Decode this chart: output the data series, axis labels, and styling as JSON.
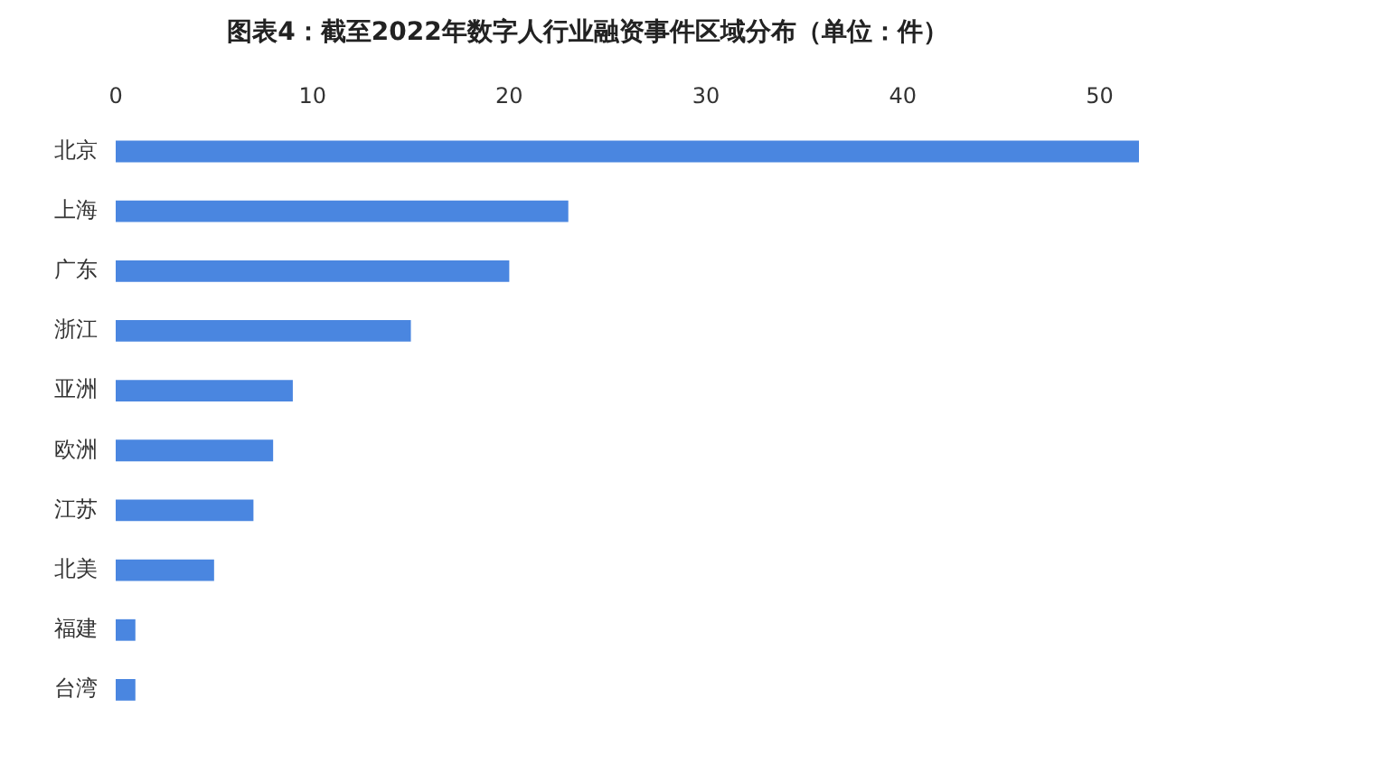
{
  "chart_data": {
    "type": "bar",
    "orientation": "horizontal",
    "title": "图表4：截至2022年数字人行业融资事件区域分布（单位：件）",
    "categories": [
      "北京",
      "上海",
      "广东",
      "浙江",
      "亚洲",
      "欧洲",
      "江苏",
      "北美",
      "福建",
      "台湾"
    ],
    "values": [
      52,
      23,
      20,
      15,
      9,
      8,
      7,
      5,
      1,
      1
    ],
    "color": "#4a86e0",
    "xlim": [
      0,
      52
    ],
    "xticks": [
      0,
      10,
      20,
      30,
      40,
      50
    ],
    "grid": false,
    "legend": false
  }
}
